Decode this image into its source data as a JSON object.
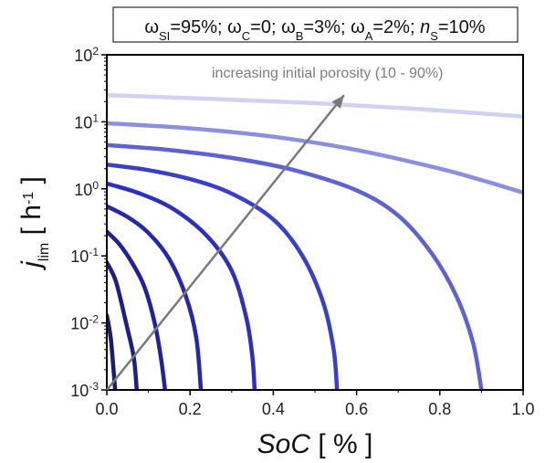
{
  "chart_data": {
    "type": "line",
    "title": "",
    "param_box": {
      "segments": [
        {
          "text": "ω",
          "style": "normal"
        },
        {
          "text": "SI",
          "style": "sub"
        },
        {
          "text": "=95%; ",
          "style": "normal"
        },
        {
          "text": "ω",
          "style": "normal"
        },
        {
          "text": "C",
          "style": "sub"
        },
        {
          "text": "=0;  ",
          "style": "normal"
        },
        {
          "text": "ω",
          "style": "normal"
        },
        {
          "text": "B",
          "style": "sub"
        },
        {
          "text": "=3%; ",
          "style": "normal"
        },
        {
          "text": "ω",
          "style": "normal"
        },
        {
          "text": "A",
          "style": "sub"
        },
        {
          "text": "=2%; ",
          "style": "normal"
        },
        {
          "text": "n",
          "style": "italic"
        },
        {
          "text": "S",
          "style": "sub"
        },
        {
          "text": "=10%",
          "style": "normal"
        }
      ]
    },
    "xlabel": {
      "italic": "SoC",
      "rest": " [ % ]"
    },
    "ylabel": {
      "italic": "j",
      "sub": "lim",
      "rest_pre": " [ h",
      "sup": "-1",
      "rest_post": " ]"
    },
    "xlim": [
      0.0,
      1.0
    ],
    "ylim": [
      0.001,
      100
    ],
    "yscale": "log",
    "x_ticks": [
      {
        "value": 0.0,
        "label": "0.0"
      },
      {
        "value": 0.2,
        "label": "0.2"
      },
      {
        "value": 0.4,
        "label": "0.4"
      },
      {
        "value": 0.6,
        "label": "0.6"
      },
      {
        "value": 0.8,
        "label": "0.8"
      },
      {
        "value": 1.0,
        "label": "1.0"
      }
    ],
    "y_ticks": [
      {
        "value": 0.001,
        "base": "10",
        "exp": "-3"
      },
      {
        "value": 0.01,
        "base": "10",
        "exp": "-2"
      },
      {
        "value": 0.1,
        "base": "10",
        "exp": "-1"
      },
      {
        "value": 1,
        "base": "10",
        "exp": "0"
      },
      {
        "value": 10,
        "base": "10",
        "exp": "1"
      },
      {
        "value": 100,
        "base": "10",
        "exp": "2"
      }
    ],
    "grid": false,
    "annotation": {
      "text": "increasing initial porosity (10 - 90%)",
      "arrow_from": [
        0.0,
        0.001
      ],
      "arrow_to": [
        0.57,
        25
      ]
    },
    "series": [
      {
        "color": "#1e1a6e",
        "points": [
          [
            0.0,
            0.013
          ],
          [
            0.005,
            0.009
          ],
          [
            0.01,
            0.0055
          ],
          [
            0.015,
            0.0025
          ],
          [
            0.02,
            0.001
          ]
        ]
      },
      {
        "color": "#1f1d86",
        "points": [
          [
            0.0,
            0.08
          ],
          [
            0.02,
            0.045
          ],
          [
            0.035,
            0.02
          ],
          [
            0.05,
            0.008
          ],
          [
            0.065,
            0.003
          ],
          [
            0.072,
            0.001
          ]
        ]
      },
      {
        "color": "#21219b",
        "points": [
          [
            0.0,
            0.23
          ],
          [
            0.03,
            0.15
          ],
          [
            0.06,
            0.08
          ],
          [
            0.09,
            0.035
          ],
          [
            0.115,
            0.01
          ],
          [
            0.13,
            0.003
          ],
          [
            0.14,
            0.001
          ]
        ]
      },
      {
        "color": "#2528ad",
        "points": [
          [
            0.0,
            0.55
          ],
          [
            0.05,
            0.38
          ],
          [
            0.1,
            0.22
          ],
          [
            0.15,
            0.09
          ],
          [
            0.19,
            0.025
          ],
          [
            0.215,
            0.006
          ],
          [
            0.226,
            0.001
          ]
        ]
      },
      {
        "color": "#2b30bd",
        "points": [
          [
            0.0,
            1.2
          ],
          [
            0.08,
            0.85
          ],
          [
            0.16,
            0.5
          ],
          [
            0.24,
            0.2
          ],
          [
            0.3,
            0.06
          ],
          [
            0.335,
            0.012
          ],
          [
            0.35,
            0.003
          ],
          [
            0.355,
            0.001
          ]
        ]
      },
      {
        "color": "#3a3fc8",
        "points": [
          [
            0.0,
            2.3
          ],
          [
            0.1,
            1.9
          ],
          [
            0.2,
            1.4
          ],
          [
            0.3,
            0.85
          ],
          [
            0.4,
            0.35
          ],
          [
            0.47,
            0.1
          ],
          [
            0.52,
            0.02
          ],
          [
            0.545,
            0.004
          ],
          [
            0.553,
            0.001
          ]
        ]
      },
      {
        "color": "#5e62d3",
        "points": [
          [
            0.0,
            4.5
          ],
          [
            0.15,
            3.8
          ],
          [
            0.3,
            2.9
          ],
          [
            0.45,
            1.9
          ],
          [
            0.6,
            0.95
          ],
          [
            0.7,
            0.4
          ],
          [
            0.78,
            0.11
          ],
          [
            0.84,
            0.025
          ],
          [
            0.88,
            0.005
          ],
          [
            0.9,
            0.001
          ]
        ]
      },
      {
        "color": "#8c8fe0",
        "points": [
          [
            0.0,
            9.5
          ],
          [
            0.2,
            8.0
          ],
          [
            0.4,
            6.0
          ],
          [
            0.6,
            3.8
          ],
          [
            0.8,
            2.0
          ],
          [
            0.9,
            1.35
          ],
          [
            1.0,
            0.88
          ]
        ]
      },
      {
        "color": "#d0d2f3",
        "points": [
          [
            0.0,
            25
          ],
          [
            0.25,
            22
          ],
          [
            0.5,
            19
          ],
          [
            0.75,
            15.5
          ],
          [
            1.0,
            12
          ]
        ]
      }
    ]
  }
}
